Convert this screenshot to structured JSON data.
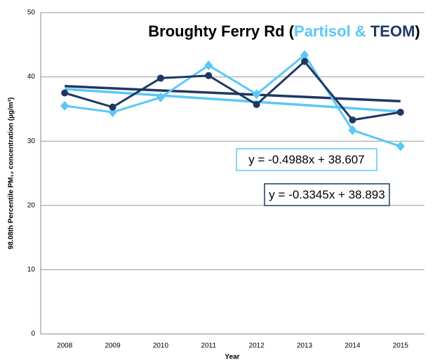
{
  "chart_data": {
    "type": "line",
    "title_parts": [
      "Broughty Ferry Rd (",
      "Partisol &",
      " TEOM",
      ")"
    ],
    "title_colors": [
      "#000000",
      "#5bc8f5",
      "#1f3864",
      "#000000"
    ],
    "y_label": "98.08th Percentile  PM₁₀ concentration (µg/m³)",
    "x_label": "Year",
    "categories": [
      "2008",
      "2009",
      "2010",
      "2011",
      "2012",
      "2013",
      "2014",
      "2015"
    ],
    "series": [
      {
        "name": "Partisol",
        "color": "#5bc8f5",
        "marker": "diamond",
        "values": [
          35.5,
          34.5,
          36.8,
          41.8,
          37.3,
          43.4,
          31.7,
          29.2
        ],
        "trendline": {
          "label": "y = -0.4988x + 38.607",
          "slope": -0.4988,
          "intercept": 38.607
        }
      },
      {
        "name": "TEOM",
        "color": "#1f3864",
        "marker": "circle",
        "values": [
          37.5,
          35.3,
          39.8,
          40.2,
          35.7,
          42.4,
          33.3,
          34.5
        ],
        "trendline": {
          "label": "y = -0.3345x + 38.893",
          "slope": -0.3345,
          "intercept": 38.893
        }
      }
    ],
    "ylim": [
      0,
      50
    ],
    "yticks": [
      0,
      10,
      20,
      30,
      40,
      50
    ],
    "grid": true
  }
}
